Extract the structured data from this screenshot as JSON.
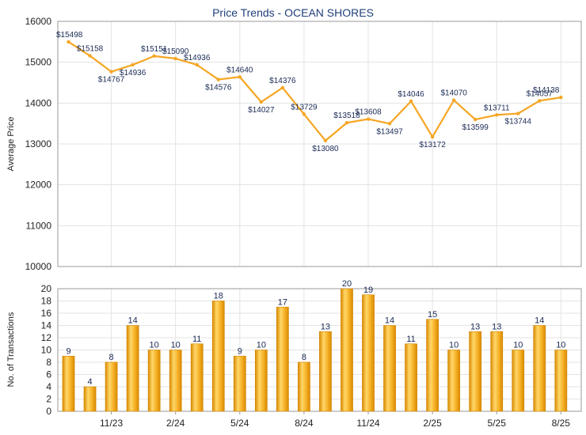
{
  "chart_data": [
    {
      "type": "line",
      "title": "Price Trends - OCEAN SHORES",
      "ylabel": "Average Price",
      "ylim": [
        10000,
        16000
      ],
      "yticks": [
        "16000",
        "15000",
        "14000",
        "13000",
        "12000",
        "11000",
        "10000"
      ],
      "grid": true,
      "color": "#F5A623",
      "values": [
        15498,
        15158,
        14767,
        14936,
        15151,
        15090,
        14936,
        14576,
        14640,
        14027,
        14376,
        13729,
        13080,
        13518,
        13608,
        13497,
        14046,
        13172,
        14070,
        13599,
        13711,
        13744,
        14057,
        14138
      ],
      "labels": [
        "$15498",
        "$15158",
        "$14767",
        "$14936",
        "$15151",
        "$15090",
        "$14936",
        "$14576",
        "$14640",
        "$14027",
        "$14376",
        "$13729",
        "$13080",
        "$13518",
        "$13608",
        "$13497",
        "$14046",
        "$13172",
        "$14070",
        "$13599",
        "$13711",
        "$13744",
        "$14057",
        "$14138"
      ]
    },
    {
      "type": "bar",
      "ylabel": "No. of Transactions",
      "ylim": [
        0,
        20
      ],
      "yticks": [
        "20",
        "18",
        "16",
        "14",
        "12",
        "10",
        "8",
        "6",
        "4",
        "2",
        "0"
      ],
      "xticks": [
        "11/23",
        "2/24",
        "5/24",
        "8/24",
        "11/24",
        "2/25",
        "5/25",
        "8/25"
      ],
      "grid": true,
      "color": "#F5A623",
      "values": [
        9,
        4,
        8,
        14,
        10,
        10,
        11,
        18,
        9,
        10,
        17,
        8,
        13,
        20,
        19,
        14,
        11,
        15,
        10,
        13,
        13,
        10,
        14,
        10
      ]
    }
  ]
}
